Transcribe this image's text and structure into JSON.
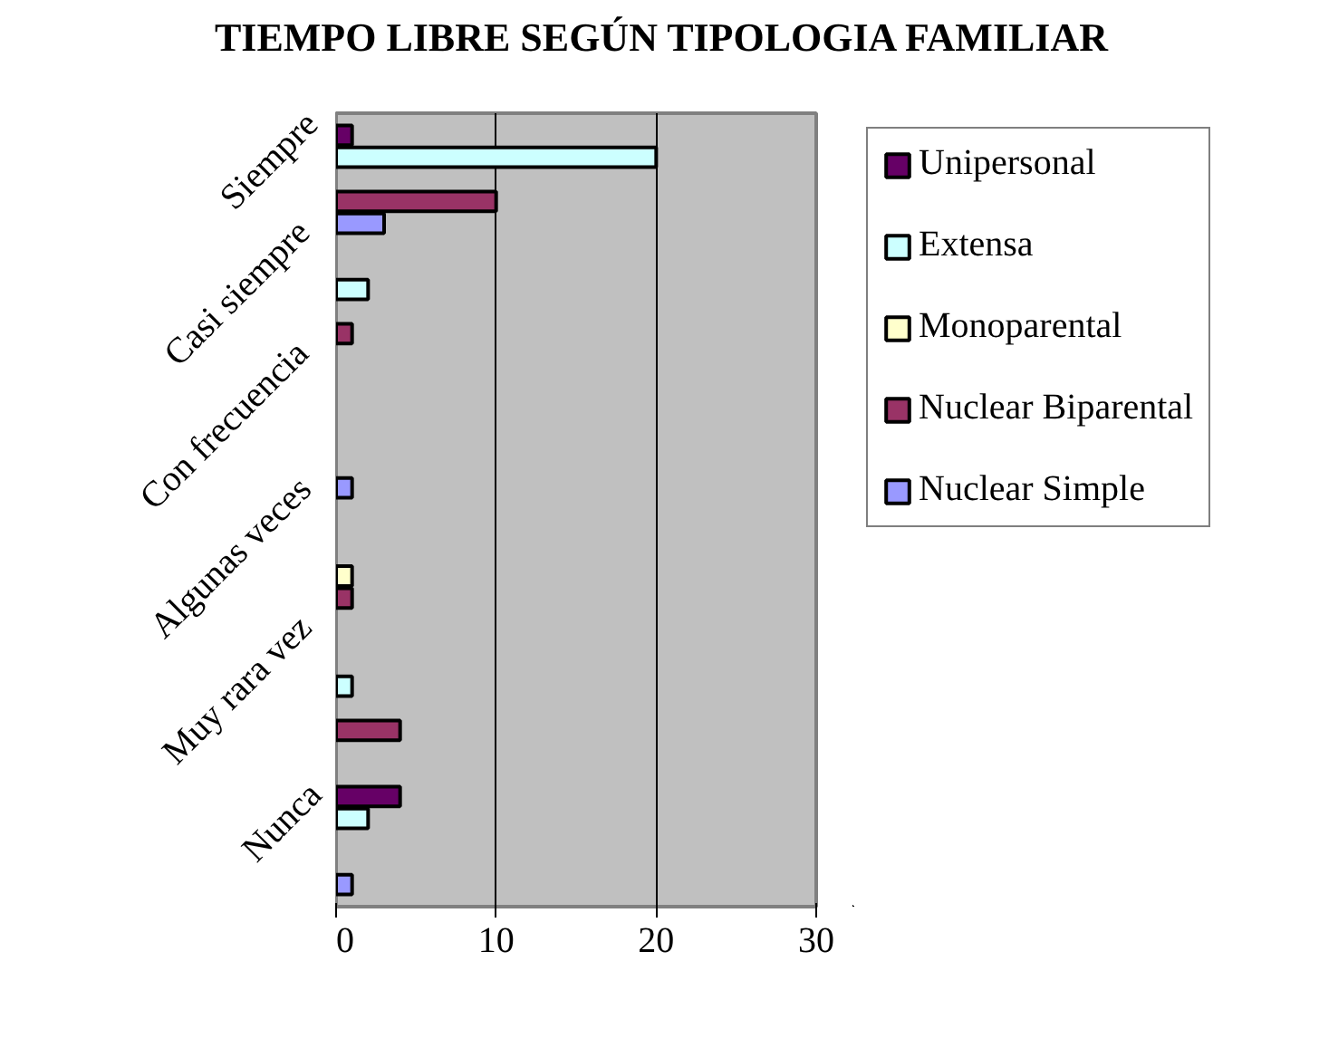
{
  "chart_data": {
    "type": "bar",
    "orientation": "horizontal",
    "title": "TIEMPO LIBRE SEGÚN TIPOLOGIA FAMILIAR",
    "categories": [
      "Siempre",
      "Casi siempre",
      "Con frecuencia",
      "Algunas veces",
      "Muy rara vez",
      "Nunca"
    ],
    "series": [
      {
        "name": "Unipersonal",
        "color": "#660066",
        "values": [
          1,
          null,
          null,
          null,
          null,
          4
        ]
      },
      {
        "name": "Extensa",
        "color": "#ccffff",
        "values": [
          20,
          2,
          null,
          null,
          1,
          2
        ]
      },
      {
        "name": "Monoparental",
        "color": "#ffffcc",
        "values": [
          null,
          null,
          null,
          1,
          null,
          null
        ]
      },
      {
        "name": "Nuclear Biparental",
        "color": "#993366",
        "values": [
          10,
          1,
          null,
          1,
          4,
          null
        ]
      },
      {
        "name": "Nuclear Simple",
        "color": "#9999ff",
        "values": [
          3,
          null,
          1,
          null,
          null,
          1
        ]
      }
    ],
    "xlim": [
      0,
      30
    ],
    "xticks": [
      0,
      10,
      20,
      30
    ],
    "grid": "x",
    "legend": "right"
  }
}
